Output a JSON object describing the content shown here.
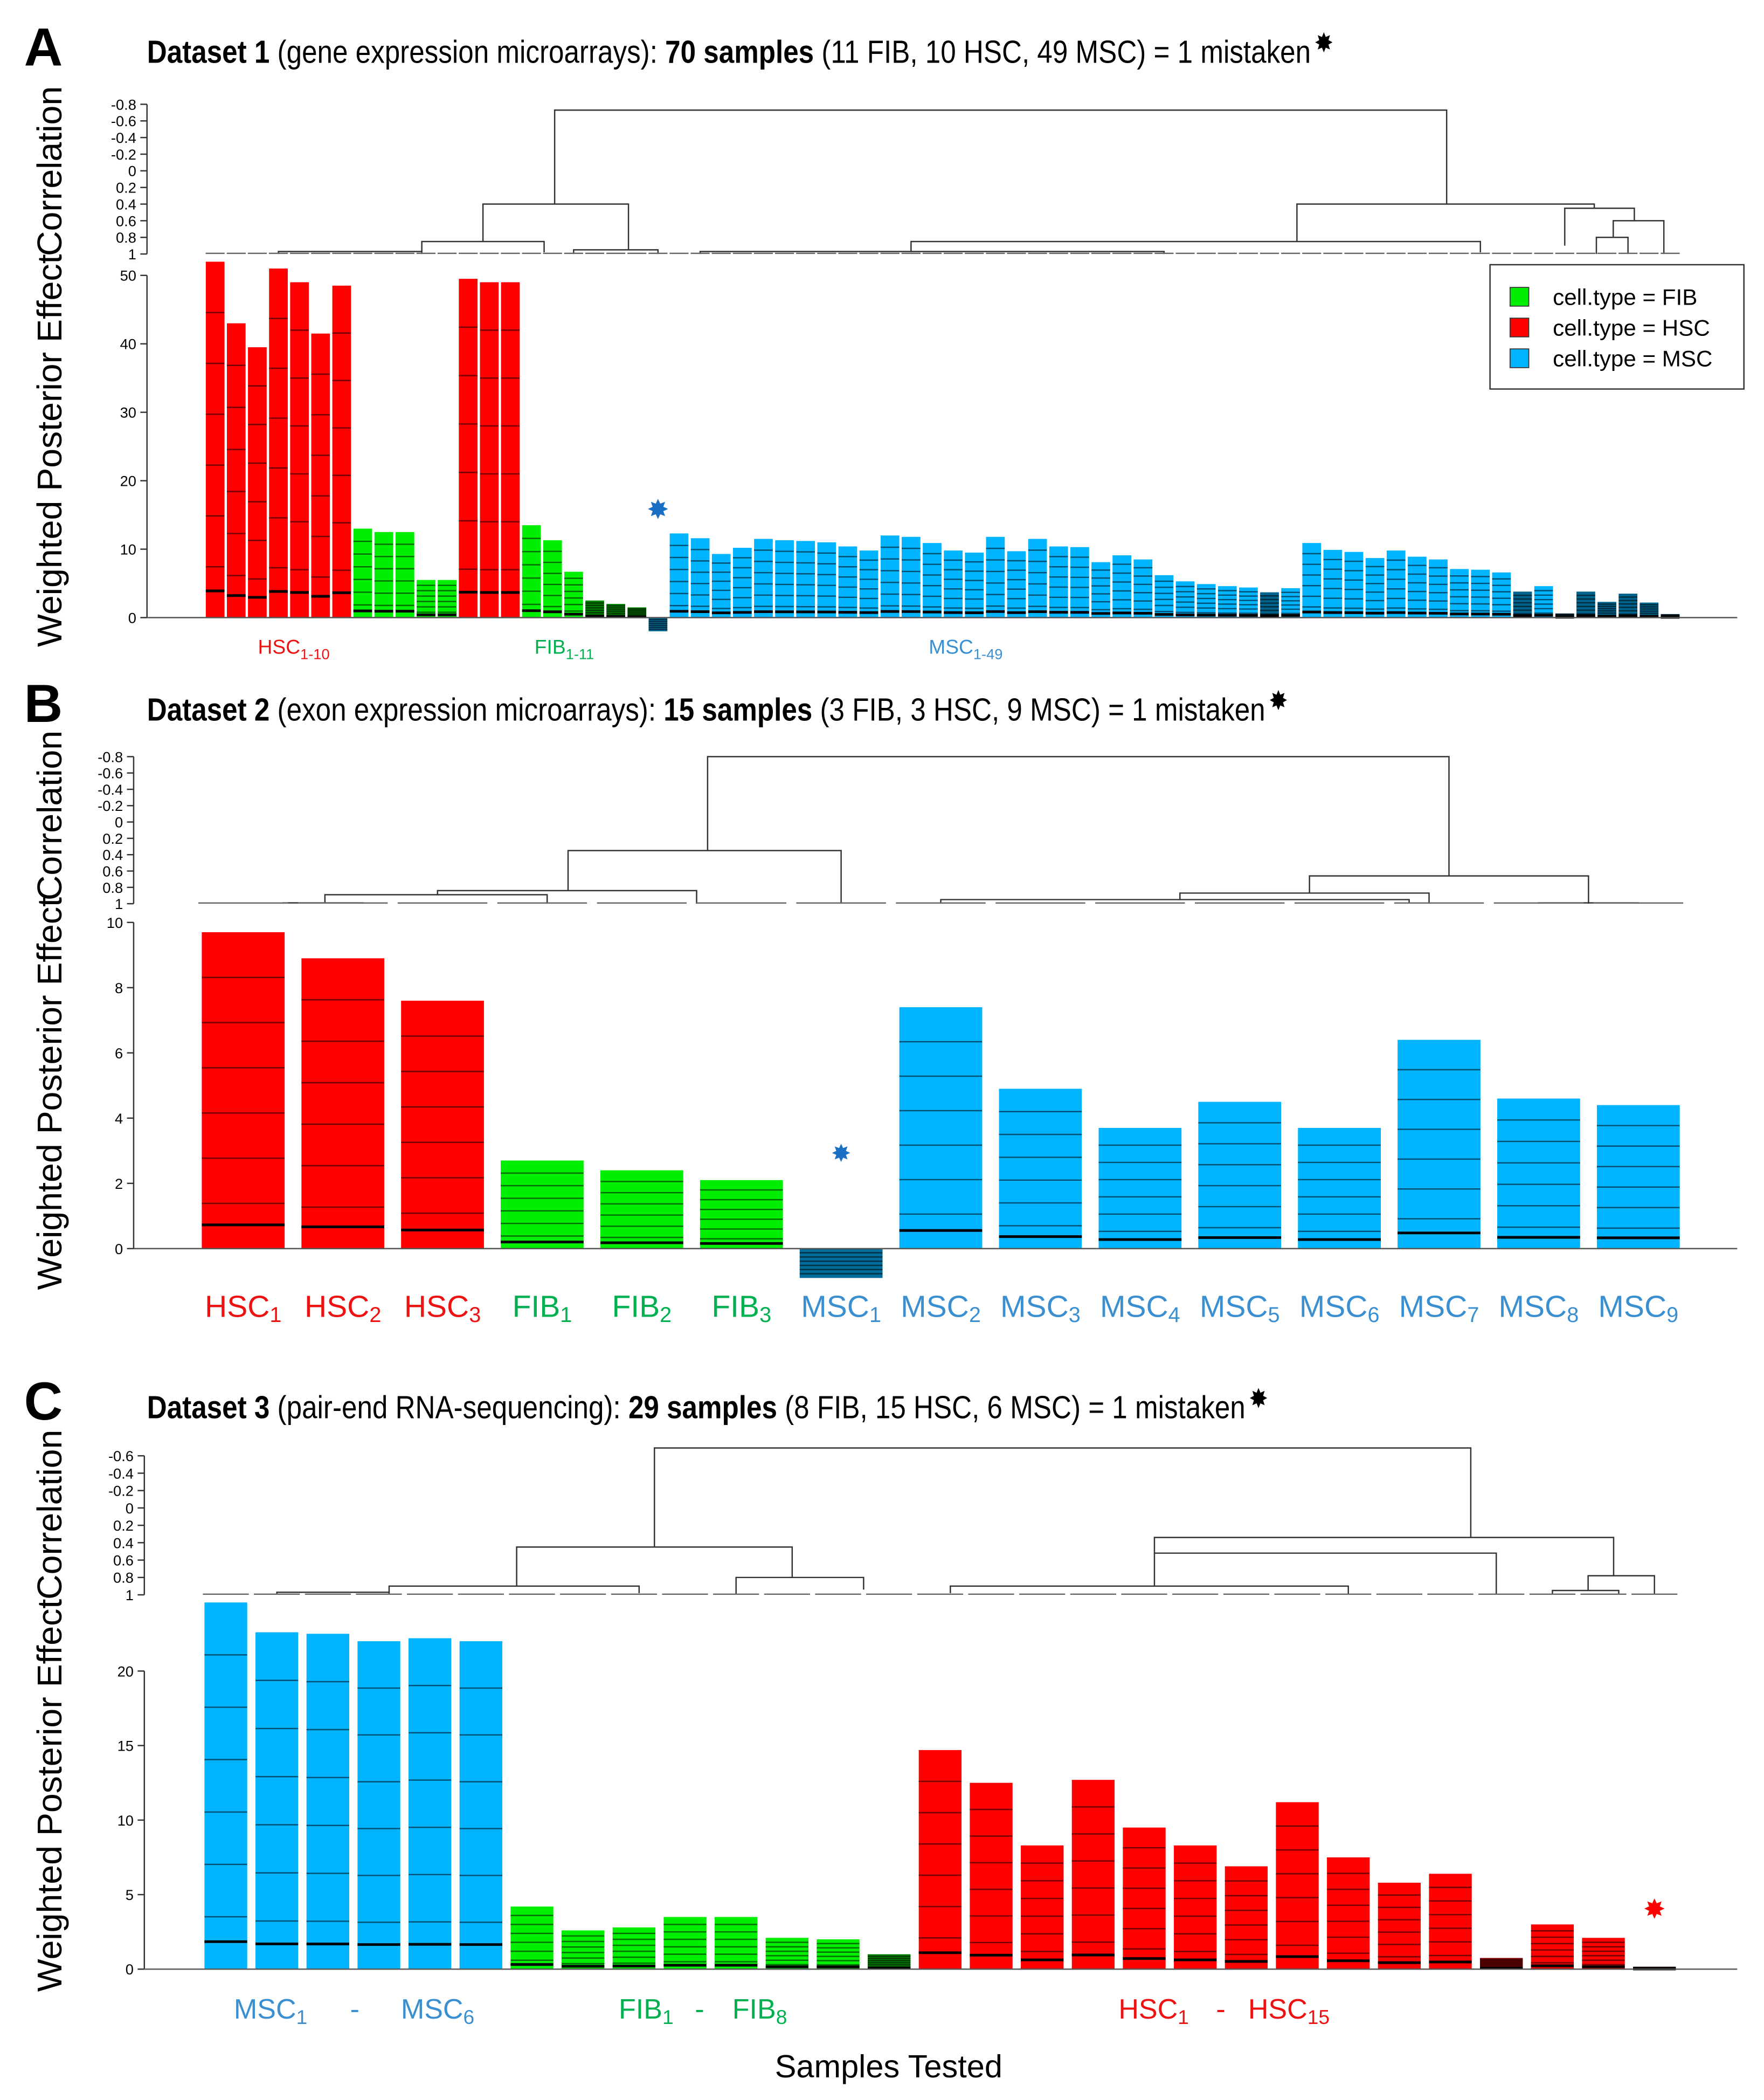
{
  "legend": {
    "items": [
      {
        "label": "cell.type = FIB",
        "color": "#00ee00"
      },
      {
        "label": "cell.type = HSC",
        "color": "#ff0000"
      },
      {
        "label": "cell.type = MSC",
        "color": "#00b4ff"
      }
    ]
  },
  "colors": {
    "H": "#ff0000",
    "F": "#00ee00",
    "M": "#00b4ff",
    "H_label": "#ee1111",
    "F_label": "#00b050",
    "M_label": "#3a8fd0"
  },
  "star_glyph": "✸",
  "xlabel": "Samples Tested",
  "chart_data": [
    {
      "type": "bar",
      "panel": "A",
      "title": {
        "b1": "Dataset 1",
        "t1": " (gene expression microarrays): ",
        "b2": "70 samples",
        "t2": " (11 FIB, 10 HSC, 49 MSC) = 1 mistaken"
      },
      "dendro_ylabel": "Correlation",
      "ylabel": "Weighted Posterior Effect",
      "dendro_ticks": [
        "-0.8",
        "-0.6",
        "-0.4",
        "-0.2",
        "0",
        "0.2",
        "0.4",
        "0.6",
        "0.8",
        "1"
      ],
      "dendro_range": [
        -0.8,
        1
      ],
      "yticks": [
        "0",
        "10",
        "20",
        "30",
        "40",
        "50"
      ],
      "ylim": [
        0,
        50
      ],
      "types": [
        "H",
        "H",
        "H",
        "H",
        "H",
        "H",
        "H",
        "F",
        "F",
        "F",
        "F",
        "F",
        "H",
        "H",
        "H",
        "F",
        "F",
        "F",
        "F",
        "F",
        "F",
        "M",
        "M",
        "M",
        "M",
        "M",
        "M",
        "M",
        "M",
        "M",
        "M",
        "M",
        "M",
        "M",
        "M",
        "M",
        "M",
        "M",
        "M",
        "M",
        "M",
        "M",
        "M",
        "M",
        "M",
        "M",
        "M",
        "M",
        "M",
        "M",
        "M",
        "M",
        "M",
        "M",
        "M",
        "M",
        "M",
        "M",
        "M",
        "M",
        "M",
        "M",
        "M",
        "M",
        "M",
        "M",
        "M",
        "M",
        "M",
        "M"
      ],
      "values": [
        52,
        43,
        39.5,
        51,
        49,
        41.5,
        48.5,
        13,
        12.5,
        12.5,
        5.5,
        5.5,
        49.5,
        49,
        49,
        13.5,
        11.3,
        6.7,
        2.5,
        2,
        1.5,
        -2,
        12.3,
        11.6,
        9.3,
        10.2,
        11.5,
        11.3,
        11.2,
        11,
        10.4,
        9.8,
        12,
        11.8,
        10.9,
        9.8,
        9.5,
        11.8,
        9.7,
        11.5,
        10.4,
        10.3,
        8.1,
        9.1,
        8.5,
        6.2,
        5.3,
        4.9,
        4.6,
        4.4,
        3.7,
        4.3,
        10.9,
        9.9,
        9.6,
        8.7,
        9.8,
        8.9,
        8.5,
        7.1,
        7,
        6.6,
        3.8,
        4.6,
        0.6,
        3.8,
        2.3,
        3.5,
        2.2,
        0.5
      ],
      "mistaken_index": 21,
      "group_labels": [
        {
          "base": "HSC",
          "sub": "1-10",
          "type": "H"
        },
        {
          "base": "FIB",
          "sub": "1-11",
          "type": "F"
        },
        {
          "base": "MSC",
          "sub": "1-49",
          "type": "M"
        }
      ],
      "dendrogram": [
        {
          "l": 16.1,
          "r": 58.4,
          "h": -0.73,
          "lh": 0.4,
          "rh": 0.4
        },
        {
          "l": 12.7,
          "r": 19.6,
          "h": 0.4,
          "lh": 0.85,
          "rh": 0.95
        },
        {
          "l": 9.8,
          "r": 15.6,
          "h": 0.85,
          "lh": 0.97,
          "rh": 0.98
        },
        {
          "l": 3,
          "r": 9.8,
          "h": 0.97,
          "lh": 1,
          "rh": 1
        },
        {
          "l": 17,
          "r": 21,
          "h": 0.95,
          "lh": 1,
          "rh": 1
        },
        {
          "l": 51.3,
          "r": 65.4,
          "h": 0.4,
          "lh": 0.85,
          "rh": 0.45
        },
        {
          "l": 33,
          "r": 60,
          "h": 0.85,
          "lh": 0.97,
          "rh": 0.98
        },
        {
          "l": 23,
          "r": 45,
          "h": 0.97,
          "lh": 1,
          "rh": 1
        },
        {
          "l": 64,
          "r": 67.3,
          "h": 0.45,
          "lh": 0.9,
          "rh": 0.6
        },
        {
          "l": 66.3,
          "r": 68.7,
          "h": 0.6,
          "lh": 0.8,
          "rh": 1
        },
        {
          "l": 65.5,
          "r": 67,
          "h": 0.8,
          "lh": 1,
          "rh": 1
        }
      ]
    },
    {
      "type": "bar",
      "panel": "B",
      "title": {
        "b1": "Dataset 2",
        "t1": " (exon expression microarrays): ",
        "b2": "15 samples",
        "t2": " (3 FIB, 3 HSC, 9 MSC) = 1 mistaken"
      },
      "dendro_ylabel": "Correlation",
      "ylabel": "Weighted Posterior Effect",
      "dendro_ticks": [
        "-0.8",
        "-0.6",
        "-0.4",
        "-0.2",
        "0",
        "0.2",
        "0.4",
        "0.6",
        "0.8",
        "1"
      ],
      "dendro_range": [
        -0.8,
        1
      ],
      "yticks": [
        "0",
        "2",
        "4",
        "6",
        "8",
        "10"
      ],
      "ylim": [
        0,
        10
      ],
      "types": [
        "H",
        "H",
        "H",
        "F",
        "F",
        "F",
        "M",
        "M",
        "M",
        "M",
        "M",
        "M",
        "M",
        "M",
        "M"
      ],
      "values": [
        9.7,
        8.9,
        7.6,
        2.7,
        2.4,
        2.1,
        -0.9,
        7.4,
        4.9,
        3.7,
        4.5,
        3.7,
        6.4,
        4.6,
        4.4
      ],
      "mistaken_index": 6,
      "categories": [
        {
          "base": "HSC",
          "sub": "1",
          "type": "H"
        },
        {
          "base": "HSC",
          "sub": "2",
          "type": "H"
        },
        {
          "base": "HSC",
          "sub": "3",
          "type": "H"
        },
        {
          "base": "FIB",
          "sub": "1",
          "type": "F"
        },
        {
          "base": "FIB",
          "sub": "2",
          "type": "F"
        },
        {
          "base": "FIB",
          "sub": "3",
          "type": "F"
        },
        {
          "base": "MSC",
          "sub": "1",
          "type": "M"
        },
        {
          "base": "MSC",
          "sub": "2",
          "type": "M"
        },
        {
          "base": "MSC",
          "sub": "3",
          "type": "M"
        },
        {
          "base": "MSC",
          "sub": "4",
          "type": "M"
        },
        {
          "base": "MSC",
          "sub": "5",
          "type": "M"
        },
        {
          "base": "MSC",
          "sub": "6",
          "type": "M"
        },
        {
          "base": "MSC",
          "sub": "7",
          "type": "M"
        },
        {
          "base": "MSC",
          "sub": "8",
          "type": "M"
        },
        {
          "base": "MSC",
          "sub": "9",
          "type": "M"
        }
      ],
      "dendrogram": [
        {
          "l": 4.66,
          "r": 12.1,
          "h": -0.8,
          "lh": 0.35,
          "rh": 0.66
        },
        {
          "l": 3.26,
          "r": 6,
          "h": 0.35,
          "lh": 0.84,
          "rh": 1
        },
        {
          "l": 1.95,
          "r": 4.55,
          "h": 0.84,
          "lh": 0.89,
          "rh": 1
        },
        {
          "l": 0.82,
          "r": 3.05,
          "h": 0.89,
          "lh": 0.99,
          "rh": 1
        },
        {
          "l": 0.4,
          "r": 1.2,
          "h": 0.99,
          "lh": 1,
          "rh": 1
        },
        {
          "l": 10.7,
          "r": 13.5,
          "h": 0.66,
          "lh": 0.87,
          "rh": 1
        },
        {
          "l": 9.4,
          "r": 11.9,
          "h": 0.87,
          "lh": 0.95,
          "rh": 1
        },
        {
          "l": 7,
          "r": 11.7,
          "h": 0.95,
          "lh": 1,
          "rh": 0.99
        },
        {
          "l": 13,
          "r": 14,
          "h": 0.99,
          "lh": 1,
          "rh": 1
        }
      ]
    },
    {
      "type": "bar",
      "panel": "C",
      "title": {
        "b1": "Dataset 3",
        "t1": " (pair-end RNA-sequencing): ",
        "b2": "29 samples",
        "t2": " (8 FIB, 15 HSC, 6 MSC) = 1 mistaken"
      },
      "dendro_ylabel": "Correlation",
      "ylabel": "Weighted Posterior Effect",
      "dendro_ticks": [
        "-0.6",
        "-0.4",
        "-0.2",
        "0",
        "0.2",
        "0.4",
        "0.6",
        "0.8",
        "1"
      ],
      "dendro_range": [
        -0.6,
        1
      ],
      "yticks": [
        "0",
        "5",
        "10",
        "15",
        "20"
      ],
      "ylim": [
        0,
        25
      ],
      "types": [
        "M",
        "M",
        "M",
        "M",
        "M",
        "M",
        "F",
        "F",
        "F",
        "F",
        "F",
        "F",
        "F",
        "F",
        "H",
        "H",
        "H",
        "H",
        "H",
        "H",
        "H",
        "H",
        "H",
        "H",
        "H",
        "H",
        "H",
        "H",
        "H"
      ],
      "values": [
        24.6,
        22.6,
        22.5,
        22,
        22.2,
        22,
        4.2,
        2.6,
        2.8,
        3.5,
        3.5,
        2.1,
        2,
        1,
        14.7,
        12.5,
        8.3,
        12.7,
        9.5,
        8.3,
        6.9,
        11.2,
        7.5,
        5.8,
        6.4,
        0.75,
        3,
        2.1,
        0.15
      ],
      "mistaken_index": 28,
      "group_labels": [
        {
          "base": "MSC",
          "sub": "1",
          "type": "M"
        },
        {
          "dash": "-",
          "type": "M"
        },
        {
          "base": "MSC",
          "sub": "6",
          "type": "M"
        },
        {
          "base": "FIB",
          "sub": "1",
          "type": "F"
        },
        {
          "dash": "-",
          "type": "F"
        },
        {
          "base": "FIB",
          "sub": "8",
          "type": "F"
        },
        {
          "base": "HSC",
          "sub": "1",
          "type": "H"
        },
        {
          "dash": "-",
          "type": "H"
        },
        {
          "base": "HSC",
          "sub": "15",
          "type": "H"
        }
      ],
      "dendrogram": [
        {
          "l": 8.4,
          "r": 24.4,
          "h": -0.69,
          "lh": 0.45,
          "rh": 0.34
        },
        {
          "l": 5.7,
          "r": 11.1,
          "h": 0.45,
          "lh": 0.9,
          "rh": 0.8
        },
        {
          "l": 3.2,
          "r": 8.1,
          "h": 0.9,
          "lh": 0.97,
          "rh": 0.98
        },
        {
          "l": 1,
          "r": 3.2,
          "h": 0.97,
          "lh": 1,
          "rh": 1
        },
        {
          "l": 10,
          "r": 12.5,
          "h": 0.8,
          "lh": 1,
          "rh": 0.94
        },
        {
          "l": 18.2,
          "r": 27.2,
          "h": 0.34,
          "lh": 0.52,
          "rh": 0.78
        },
        {
          "l": 18.2,
          "r": 24.9,
          "h": 0.52,
          "lh": 0.9,
          "rh": 1
        },
        {
          "l": 14.2,
          "r": 22,
          "h": 0.9,
          "lh": 0.98,
          "rh": 0.99
        },
        {
          "l": 26.7,
          "r": 28,
          "h": 0.78,
          "lh": 0.95,
          "rh": 1
        },
        {
          "l": 26,
          "r": 27.3,
          "h": 0.95,
          "lh": 1,
          "rh": 1
        }
      ]
    }
  ]
}
